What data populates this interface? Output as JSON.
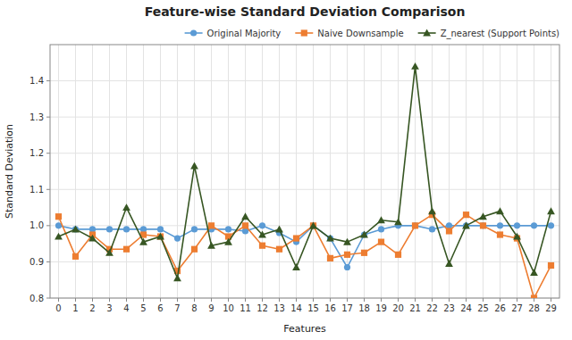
{
  "chart_data": {
    "type": "line",
    "title": "Feature-wise Standard Deviation Comparison",
    "x_label": "Features",
    "y_label": "Standard Deviation",
    "x": [
      0,
      1,
      2,
      3,
      4,
      5,
      6,
      7,
      8,
      9,
      10,
      11,
      12,
      13,
      14,
      15,
      16,
      17,
      18,
      19,
      20,
      21,
      22,
      23,
      24,
      25,
      26,
      27,
      28,
      29
    ],
    "series": [
      {
        "name": "Original Majority",
        "color": "#5b9bd5",
        "marker": "circle",
        "values": [
          1.0,
          0.99,
          0.99,
          0.99,
          0.99,
          0.99,
          0.99,
          0.965,
          0.99,
          0.99,
          0.99,
          0.985,
          1.0,
          0.98,
          0.955,
          1.0,
          0.965,
          0.885,
          0.975,
          0.99,
          1.0,
          1.0,
          0.99,
          1.0,
          1.0,
          1.0,
          1.0,
          1.0,
          1.0,
          1.0
        ]
      },
      {
        "name": "Naive Downsample",
        "color": "#ed7d31",
        "marker": "square",
        "values": [
          1.025,
          0.915,
          0.975,
          0.935,
          0.935,
          0.975,
          0.97,
          0.875,
          0.935,
          1.0,
          0.97,
          1.0,
          0.945,
          0.935,
          0.965,
          1.0,
          0.91,
          0.92,
          0.925,
          0.955,
          0.92,
          1.0,
          1.03,
          0.985,
          1.03,
          1.0,
          0.975,
          0.965,
          0.8,
          0.89
        ]
      },
      {
        "name": "Z_nearest (Support Points)",
        "color": "#375623",
        "marker": "triangle",
        "values": [
          0.97,
          0.99,
          0.965,
          0.925,
          1.05,
          0.955,
          0.97,
          0.855,
          1.165,
          0.945,
          0.955,
          1.025,
          0.975,
          0.99,
          0.885,
          1.0,
          0.965,
          0.955,
          0.975,
          1.015,
          1.01,
          1.44,
          1.04,
          0.895,
          1.0,
          1.025,
          1.04,
          0.97,
          0.87,
          1.04
        ]
      }
    ],
    "xlim": [
      -0.5,
      29.5
    ],
    "xticks": [
      0,
      1,
      2,
      3,
      4,
      5,
      6,
      7,
      8,
      9,
      10,
      11,
      12,
      13,
      14,
      15,
      16,
      17,
      18,
      19,
      20,
      21,
      22,
      23,
      24,
      25,
      26,
      27,
      28,
      29
    ],
    "ylim": [
      0.8,
      1.5
    ],
    "yticks": [
      0.8,
      0.9,
      {
        "value": 1.0,
        "label": "1.0"
      },
      1.1,
      1.2,
      1.3,
      1.4
    ],
    "grid": true,
    "legend": "top"
  }
}
